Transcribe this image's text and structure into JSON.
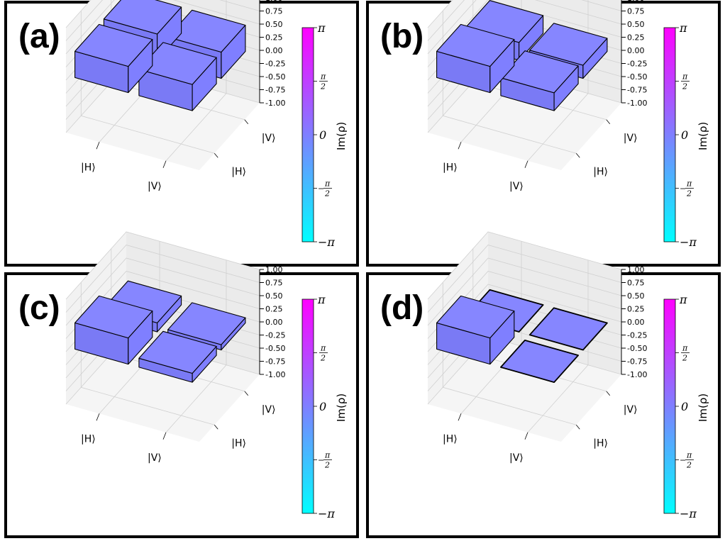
{
  "colors": {
    "bar_face": "#7f7fff",
    "bar_top": "#8686ff",
    "bar_side": "#7a7af5",
    "edge": "#000000",
    "pane_left": "#f2f2f2",
    "pane_back": "#ebebeb",
    "pane_floor": "#f5f5f5",
    "grid": "#d0d0d0",
    "cmap_top": "#ff00ff",
    "cmap_bottom": "#00ffff"
  },
  "colorbar": {
    "label": "Im(ρ)",
    "ticks": [
      "π",
      "π",
      "2",
      "0",
      "−",
      "π",
      "2",
      "−π"
    ],
    "top": "π",
    "half_num": "π",
    "half_den": "2",
    "zero": "0",
    "neg_sign": "−",
    "bottom": "−π"
  },
  "axes": {
    "z_ticks": [
      "1.00",
      "0.75",
      "0.50",
      "0.25",
      "0.00",
      "-0.25",
      "-0.50",
      "-0.75",
      "-1.00"
    ],
    "x_ticks": [
      "|H⟩",
      "|V⟩"
    ],
    "y_ticks": [
      "|V⟩",
      "|H⟩"
    ],
    "zlim": [
      -1,
      1
    ]
  },
  "chart_data": [
    {
      "type": "bar3d",
      "panel_label": "(a)",
      "rows": [
        "|H⟩",
        "|V⟩"
      ],
      "cols": [
        "|H⟩",
        "|V⟩"
      ],
      "values": [
        [
          0.5,
          0.5
        ],
        [
          0.5,
          0.5
        ]
      ],
      "color_value": "Im(ρ) = 0"
    },
    {
      "type": "bar3d",
      "panel_label": "(b)",
      "rows": [
        "|H⟩",
        "|V⟩"
      ],
      "cols": [
        "|H⟩",
        "|V⟩"
      ],
      "values": [
        [
          0.5,
          0.34
        ],
        [
          0.34,
          0.25
        ]
      ],
      "color_value": "Im(ρ) = 0"
    },
    {
      "type": "bar3d",
      "panel_label": "(c)",
      "rows": [
        "|H⟩",
        "|V⟩"
      ],
      "cols": [
        "|H⟩",
        "|V⟩"
      ],
      "values": [
        [
          0.5,
          0.17
        ],
        [
          0.17,
          0.1
        ]
      ],
      "color_value": "Im(ρ) = 0"
    },
    {
      "type": "bar3d",
      "panel_label": "(d)",
      "rows": [
        "|H⟩",
        "|V⟩"
      ],
      "cols": [
        "|H⟩",
        "|V⟩"
      ],
      "values": [
        [
          0.5,
          0.0
        ],
        [
          0.0,
          0.0
        ]
      ],
      "color_value": "Im(ρ) = 0"
    }
  ]
}
